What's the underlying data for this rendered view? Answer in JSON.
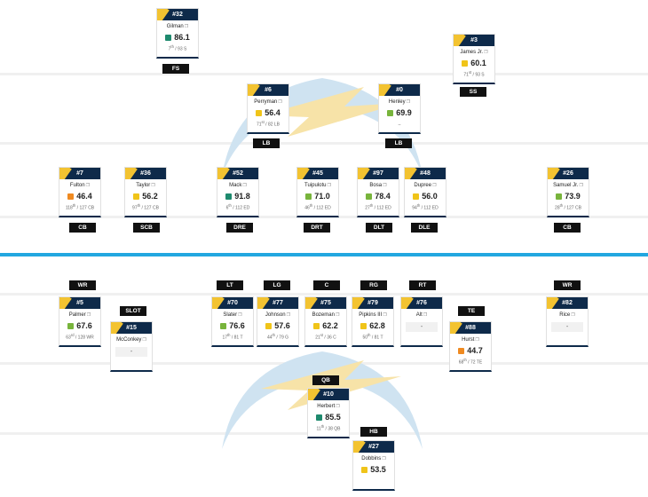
{
  "colors": {
    "navy": "#0e2a4a",
    "gold": "#f3c331",
    "scrimmage_line": "#22a7e0",
    "grade_dark_green": "#1e8a6e",
    "grade_green": "#78b43c",
    "grade_yellow": "#f0c419",
    "grade_orange": "#ef8a21"
  },
  "logo_name": "bolt-logo",
  "defense": [
    {
      "num": "#32",
      "name": "Gilman",
      "grade": "86.1",
      "grade_color": "#1e8a6e",
      "rank": "7",
      "rank_sfx": "th",
      "rank_total": " / 93 S",
      "pos": "FS"
    },
    {
      "num": "#3",
      "name": "James Jr.",
      "grade": "60.1",
      "grade_color": "#f0c419",
      "rank": "71",
      "rank_sfx": "st",
      "rank_total": " / 93 S",
      "pos": "SS"
    },
    {
      "num": "#6",
      "name": "Perryman",
      "grade": "56.4",
      "grade_color": "#f0c419",
      "rank": "71",
      "rank_sfx": "st",
      "rank_total": " / 82 LB",
      "pos": "LB"
    },
    {
      "num": "#0",
      "name": "Henley",
      "grade": "69.9",
      "grade_color": "#78b43c",
      "rank": "",
      "rank_sfx": "",
      "rank_total": "–",
      "pos": "LB"
    },
    {
      "num": "#7",
      "name": "Fulton",
      "grade": "46.4",
      "grade_color": "#ef8a21",
      "rank": "118",
      "rank_sfx": "th",
      "rank_total": " / 127 CB",
      "pos": "CB"
    },
    {
      "num": "#36",
      "name": "Taylor",
      "grade": "56.2",
      "grade_color": "#f0c419",
      "rank": "97",
      "rank_sfx": "th",
      "rank_total": " / 127 CB",
      "pos": "SCB"
    },
    {
      "num": "#52",
      "name": "Mack",
      "grade": "91.8",
      "grade_color": "#1e8a6e",
      "rank": "6",
      "rank_sfx": "th",
      "rank_total": " / 112 ED",
      "pos": "DRE"
    },
    {
      "num": "#45",
      "name": "Tuipulotu",
      "grade": "71.0",
      "grade_color": "#78b43c",
      "rank": "46",
      "rank_sfx": "th",
      "rank_total": " / 112 ED",
      "pos": "DRT"
    },
    {
      "num": "#97",
      "name": "Bosa",
      "grade": "78.4",
      "grade_color": "#78b43c",
      "rank": "27",
      "rank_sfx": "th",
      "rank_total": " / 112 ED",
      "pos": "DLT"
    },
    {
      "num": "#48",
      "name": "Dupree",
      "grade": "56.0",
      "grade_color": "#f0c419",
      "rank": "94",
      "rank_sfx": "th",
      "rank_total": " / 112 ED",
      "pos": "DLE"
    },
    {
      "num": "#26",
      "name": "Samuel Jr.",
      "grade": "73.9",
      "grade_color": "#78b43c",
      "rank": "28",
      "rank_sfx": "th",
      "rank_total": " / 127 CB",
      "pos": "CB"
    }
  ],
  "offense": [
    {
      "num": "#5",
      "name": "Palmer",
      "grade": "67.6",
      "grade_color": "#78b43c",
      "rank": "63",
      "rank_sfx": "rd",
      "rank_total": " / 128 WR",
      "pos": "WR"
    },
    {
      "num": "#15",
      "name": "McConkey",
      "grade": "",
      "grade_color": "",
      "rank": "",
      "rank_sfx": "",
      "rank_total": "",
      "blank": "-",
      "pos": "SLOT"
    },
    {
      "num": "#70",
      "name": "Slater",
      "grade": "76.6",
      "grade_color": "#78b43c",
      "rank": "17",
      "rank_sfx": "th",
      "rank_total": " / 81 T",
      "pos": "LT"
    },
    {
      "num": "#77",
      "name": "Johnson",
      "grade": "57.6",
      "grade_color": "#f0c419",
      "rank": "44",
      "rank_sfx": "th",
      "rank_total": " / 79 G",
      "pos": "LG"
    },
    {
      "num": "#75",
      "name": "Bozeman",
      "grade": "62.2",
      "grade_color": "#f0c419",
      "rank": "21",
      "rank_sfx": "st",
      "rank_total": " / 36 C",
      "pos": "C"
    },
    {
      "num": "#79",
      "name": "Pipkins III",
      "grade": "62.8",
      "grade_color": "#f0c419",
      "rank": "50",
      "rank_sfx": "th",
      "rank_total": " / 81 T",
      "pos": "RG"
    },
    {
      "num": "#76",
      "name": "Alt",
      "grade": "",
      "grade_color": "",
      "rank": "",
      "rank_sfx": "",
      "rank_total": "",
      "blank": "-",
      "pos": "RT"
    },
    {
      "num": "#88",
      "name": "Hurst",
      "grade": "44.7",
      "grade_color": "#ef8a21",
      "rank": "68",
      "rank_sfx": "th",
      "rank_total": " / 72 TE",
      "pos": "TE"
    },
    {
      "num": "#82",
      "name": "Rice",
      "grade": "",
      "grade_color": "",
      "rank": "",
      "rank_sfx": "",
      "rank_total": "",
      "blank": "-",
      "pos": "WR"
    },
    {
      "num": "#10",
      "name": "Herbert",
      "grade": "85.5",
      "grade_color": "#1e8a6e",
      "rank": "11",
      "rank_sfx": "th",
      "rank_total": " / 38 QB",
      "pos": "QB"
    },
    {
      "num": "#27",
      "name": "Dobbins",
      "grade": "53.5",
      "grade_color": "#f0c419",
      "rank": "",
      "rank_sfx": "",
      "rank_total": "",
      "pos": "HB"
    }
  ]
}
